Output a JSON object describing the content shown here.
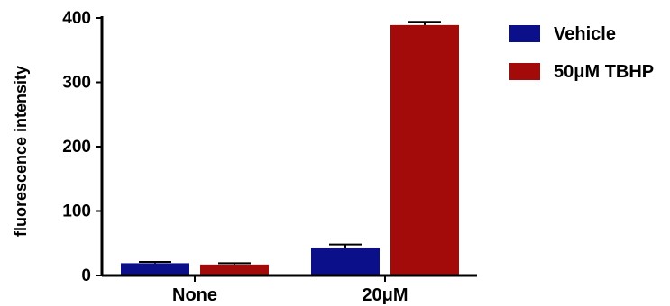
{
  "colors": {
    "vehicle": "#0b108a",
    "tbhp": "#a30b0b",
    "axis": "#000000"
  },
  "chart_data": {
    "type": "bar",
    "categories": [
      "None",
      "20μM"
    ],
    "series": [
      {
        "name": "Vehicle",
        "values": [
          19,
          42
        ],
        "errors": [
          2,
          6
        ]
      },
      {
        "name": "50μM TBHP",
        "values": [
          17,
          389
        ],
        "errors": [
          2,
          5
        ]
      }
    ],
    "ylabel": "fluorescence intensity",
    "ylim": [
      0,
      400
    ],
    "yticks": [
      0,
      100,
      200,
      300,
      400
    ],
    "legend_position": "top-right",
    "grid": false
  }
}
